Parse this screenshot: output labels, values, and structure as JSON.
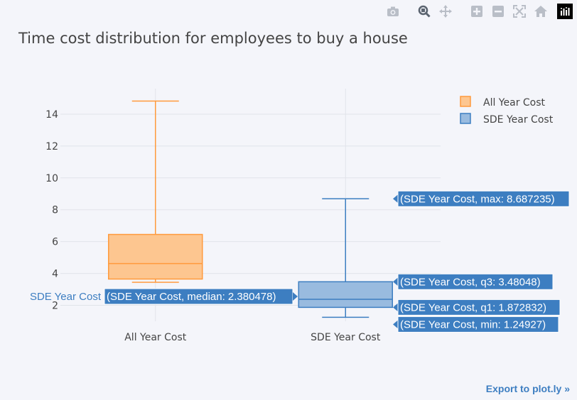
{
  "title": "Time cost distribution for employees to buy a house",
  "modebar": {
    "buttons": [
      {
        "name": "camera-icon",
        "label": "Download plot as png"
      },
      {
        "name": "zoom-icon",
        "label": "Zoom"
      },
      {
        "name": "pan-icon",
        "label": "Pan"
      },
      {
        "name": "zoom-in-icon",
        "label": "Zoom in"
      },
      {
        "name": "zoom-out-icon",
        "label": "Zoom out"
      },
      {
        "name": "autoscale-icon",
        "label": "Autoscale"
      },
      {
        "name": "home-icon",
        "label": "Reset axes"
      },
      {
        "name": "plotly-logo-icon",
        "label": "Produced with Plotly"
      }
    ]
  },
  "export_link": "Export to plot.ly »",
  "chart_data": {
    "type": "box",
    "ylim": [
      1.0,
      15.6
    ],
    "yticks": [
      2,
      4,
      6,
      8,
      10,
      12,
      14
    ],
    "categories": [
      "All Year Cost",
      "SDE Year Cost"
    ],
    "grid": true,
    "legend_position": "top-right",
    "series": [
      {
        "name": "All Year Cost",
        "category": "All Year Cost",
        "color": "#ff9a3c",
        "fill": "#fdc690",
        "min": 3.45,
        "q1": 3.65,
        "median": 4.62,
        "q3": 6.45,
        "max": 14.82
      },
      {
        "name": "SDE Year Cost",
        "category": "SDE Year Cost",
        "color": "#3d7ec1",
        "fill": "#99bbdf",
        "min": 1.24927,
        "q1": 1.872832,
        "median": 2.380478,
        "q3": 3.48048,
        "max": 8.687235
      }
    ],
    "hover": {
      "trace_label": "SDE Year Cost",
      "labels": {
        "max": "(SDE Year Cost, max: 8.687235)",
        "q3": "(SDE Year Cost, q3: 3.48048)",
        "median": "(SDE Year Cost, median: 2.380478)",
        "q1": "(SDE Year Cost, q1: 1.872832)",
        "min": "(SDE Year Cost, min: 1.24927)"
      }
    }
  }
}
